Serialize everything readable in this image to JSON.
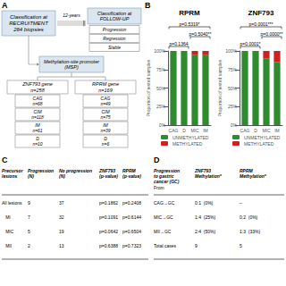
{
  "chart_data": [
    {
      "type": "flowchart",
      "panel": "A",
      "color": "#dce6f1",
      "annotations": [
        "Classification at\nRECRUITMENT\n264 biopsies",
        "12-years",
        "Classification at\nFOLLOW-UP",
        "Progression",
        "Regression",
        "Stable",
        "Methylation-site promoter\n(MSP)",
        "ZNF793 gene\nn=258",
        "RPRM gene\nn=169",
        "CAG\nn=68",
        "CIM\nn=118",
        "IM\nn=61",
        "D\nn=10",
        "CAG\nn=49",
        "CIM\nn=75",
        "IM\nn=39",
        "D\nn=6"
      ]
    },
    {
      "type": "bar",
      "panel": "B",
      "title": "RPRM",
      "ylabel": "Proportion of tested samples",
      "categories": [
        "CAG",
        "D",
        "MIC",
        "IM"
      ],
      "series": [
        {
          "name": "UNMETHYLATED",
          "color": "#2e8b2e",
          "values": [
            1,
            1,
            0.95,
            0.95
          ]
        },
        {
          "name": "METHYLATED",
          "color": "#cc2222",
          "values": [
            0,
            0,
            0.05,
            0.05
          ]
        }
      ],
      "stacked": true,
      "ylim": [
        0,
        1
      ],
      "yticks": [
        {
          "value": 0,
          "label": "0%"
        },
        {
          "value": 0.25,
          "label": "25%"
        },
        {
          "value": 0.5,
          "label": "50%"
        },
        {
          "value": 0.75,
          "label": "75%"
        },
        {
          "value": 1,
          "label": "100%"
        }
      ],
      "grid": false,
      "legend": "bottom",
      "annotations": [
        {
          "text": "p=0.5319*",
          "from": "CAG",
          "to": "IM"
        },
        {
          "text": "p=0.5040**",
          "from": "MIC",
          "to": "IM"
        },
        {
          "text": "p=0.1364",
          "from": "CAG",
          "to": "D"
        }
      ]
    },
    {
      "type": "bar",
      "panel": "B",
      "title": "ZNF793",
      "ylabel": "Proportion of tested samples",
      "categories": [
        "CAG",
        "D",
        "MIC",
        "IM"
      ],
      "series": [
        {
          "name": "UNMETHYLATED",
          "color": "#2e8b2e",
          "values": [
            1,
            1,
            0.9,
            0.85
          ]
        },
        {
          "name": "METHYLATED",
          "color": "#cc2222",
          "values": [
            0,
            0,
            0.1,
            0.15
          ]
        }
      ],
      "stacked": true,
      "ylim": [
        0,
        1
      ],
      "yticks": [
        {
          "value": 0,
          "label": "0%"
        },
        {
          "value": 0.25,
          "label": "25%"
        },
        {
          "value": 0.5,
          "label": "50%"
        },
        {
          "value": 0.75,
          "label": "75%"
        },
        {
          "value": 1,
          "label": "100%"
        }
      ],
      "grid": false,
      "legend": "bottom",
      "annotations": [
        {
          "text": "p=0.0001***",
          "from": "CAG",
          "to": "IM"
        },
        {
          "text": "p=0.0000**",
          "from": "MIC",
          "to": "IM"
        },
        {
          "text": "p=0.0001*",
          "from": "CAG",
          "to": "D"
        }
      ]
    },
    {
      "type": "table",
      "panel": "C",
      "headers": [
        "Precursor\nlesions",
        "Progression\n(N)",
        "No progression\n(N)",
        "ZNF793\n(p-value)",
        "RPRM\n(p-value)"
      ],
      "rows": [
        [
          "All lesions",
          "9",
          "37",
          "p=0.1862",
          "p=0.2408"
        ],
        [
          "   MI",
          "7",
          "32",
          "p=0.1091",
          "p=0.6144"
        ],
        [
          "   MIC",
          "5",
          "19",
          "p=0.0642",
          "p=0.6504"
        ],
        [
          "   MII",
          "2",
          "13",
          "p=0.6388",
          "p=0.7323"
        ]
      ]
    },
    {
      "type": "table",
      "panel": "D",
      "headers": [
        "Progression\nto gastric\ncancer (GC)",
        "ZNF793\nMethylation*",
        "RPRM\nMethylation*"
      ],
      "annotations": [
        "From"
      ],
      "rows": [
        [
          "CAG→GC",
          "0:1  (0%)",
          "–"
        ],
        [
          "MIC→GC",
          "1:4  (25%)",
          "0:2  (0%)"
        ],
        [
          "MII→GC",
          "2:4  (50%)",
          "1:3  (33%)"
        ],
        [
          "Total cases",
          "9",
          "5"
        ]
      ]
    }
  ]
}
